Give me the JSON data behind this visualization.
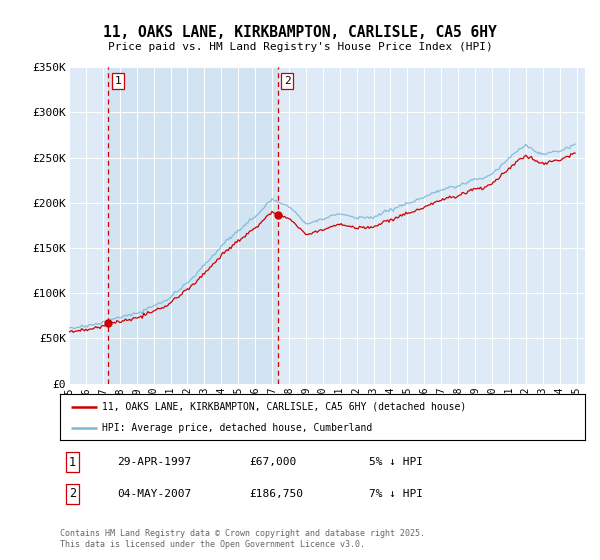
{
  "title": "11, OAKS LANE, KIRKBAMPTON, CARLISLE, CA5 6HY",
  "subtitle": "Price paid vs. HM Land Registry's House Price Index (HPI)",
  "legend_line1": "11, OAKS LANE, KIRKBAMPTON, CARLISLE, CA5 6HY (detached house)",
  "legend_line2": "HPI: Average price, detached house, Cumberland",
  "annotation1_label": "1",
  "annotation1_date": "29-APR-1997",
  "annotation1_price": "£67,000",
  "annotation1_note": "5% ↓ HPI",
  "annotation2_label": "2",
  "annotation2_date": "04-MAY-2007",
  "annotation2_price": "£186,750",
  "annotation2_note": "7% ↓ HPI",
  "footer": "Contains HM Land Registry data © Crown copyright and database right 2025.\nThis data is licensed under the Open Government Licence v3.0.",
  "hpi_color": "#7ab8d8",
  "price_color": "#cc0000",
  "dashed_line_color": "#cc0000",
  "background_color": "#deeaf5",
  "shade_color": "#c8ddf0",
  "ylim": [
    0,
    350000
  ],
  "yticks": [
    0,
    50000,
    100000,
    150000,
    200000,
    250000,
    300000,
    350000
  ],
  "ytick_labels": [
    "£0",
    "£50K",
    "£100K",
    "£150K",
    "£200K",
    "£250K",
    "£300K",
    "£350K"
  ],
  "sale1_year": 1997.33,
  "sale1_price": 67000,
  "sale2_year": 2007.34,
  "sale2_price": 186750
}
